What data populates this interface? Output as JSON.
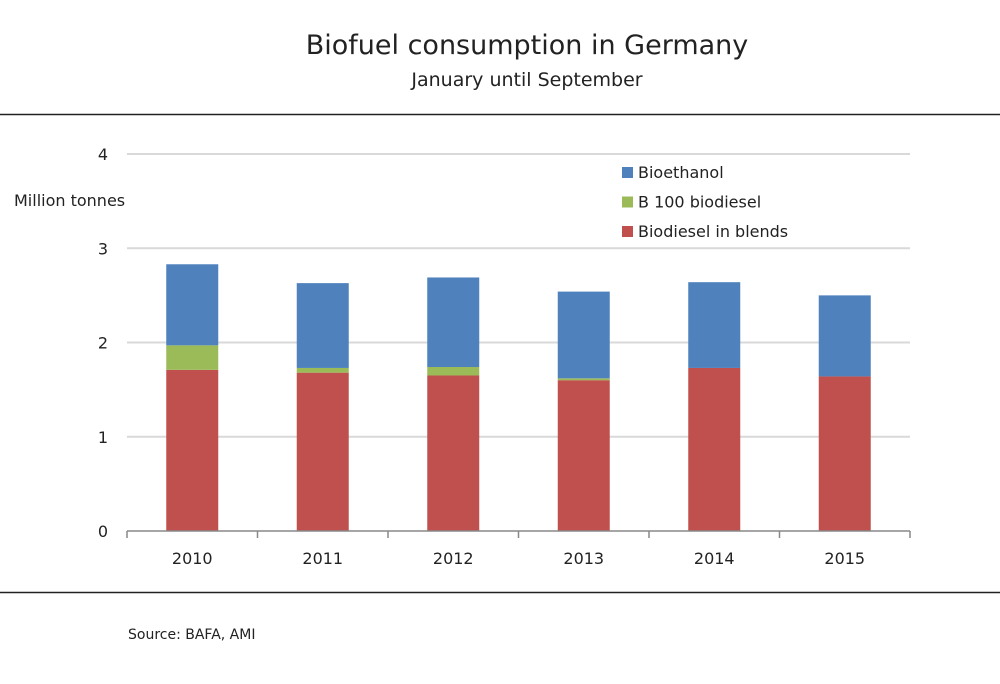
{
  "chart_data": {
    "type": "bar",
    "stacked": true,
    "title": "Biofuel consumption in Germany",
    "subtitle": "January until September",
    "ylabel": "Million tonnes",
    "xlabel": "",
    "ylim": [
      0,
      4
    ],
    "yticks": [
      0,
      1,
      2,
      3,
      4
    ],
    "grid": true,
    "legend_position": "top-right",
    "categories": [
      "2010",
      "2011",
      "2012",
      "2013",
      "2014",
      "2015"
    ],
    "series": [
      {
        "name": "Biodiesel in blends",
        "color": "#c0504d",
        "values": [
          1.71,
          1.68,
          1.65,
          1.6,
          1.73,
          1.64
        ]
      },
      {
        "name": "B 100 biodiesel",
        "color": "#9bbb59",
        "values": [
          0.26,
          0.05,
          0.09,
          0.02,
          0,
          0
        ]
      },
      {
        "name": "Bioethanol",
        "color": "#4f81bd",
        "values": [
          0.86,
          0.9,
          0.95,
          0.92,
          0.91,
          0.86
        ]
      }
    ],
    "source": "Source: BAFA, AMI"
  }
}
